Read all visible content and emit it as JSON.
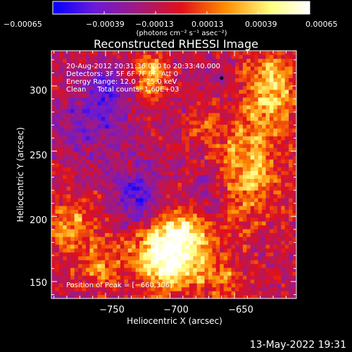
{
  "chart_data": {
    "type": "heatmap",
    "title": "Reconstructed RHESSI Image",
    "xlabel": "Heliocentric X (arcsec)",
    "ylabel": "Heliocentric Y (arcsec)",
    "xlim": [
      -792,
      -602
    ],
    "ylim": [
      137,
      327
    ],
    "x_ticks": [
      -750,
      -700,
      -650
    ],
    "x_tick_labels": [
      "−750",
      "−700",
      "−650"
    ],
    "y_ticks": [
      150,
      200,
      250,
      300
    ],
    "y_tick_labels": [
      "150",
      "200",
      "250",
      "300"
    ],
    "colorbar": {
      "min": -0.00065,
      "max": 0.00065,
      "tick_values": [
        -0.00065,
        -0.00039,
        -0.00013,
        0.00013,
        0.00039,
        0.00065
      ],
      "tick_labels": [
        "−0.00065",
        "−0.00039",
        "−0.00013",
        "0.00013",
        "0.00039",
        "0.00065"
      ],
      "units": "(photons cm⁻² s⁻¹ asec⁻²)",
      "colors": [
        "#0000ff",
        "#6a1ad8",
        "#a01a80",
        "#e0101a",
        "#ff8c00",
        "#ffff80",
        "#ffffff"
      ]
    },
    "annotations": {
      "time": "20‑Aug‑2012 20:31:36.000 to 20:33:40.000",
      "detectors": "Detectors: 3F 5F 6F 7F 8F, Att 0",
      "energy": "Energy Range: 12.0 − 25.0 keV",
      "clean": "Clean     Total counts: 1.60E+03",
      "peak": "Position of Peak = [−660,306]"
    },
    "peak": {
      "x": -660,
      "y": 306
    },
    "hot_regions": [
      {
        "x": -700,
        "y": 170,
        "sx": 22,
        "sy": 18,
        "amp": 0.00075
      },
      {
        "x": -692,
        "y": 188,
        "sx": 14,
        "sy": 12,
        "amp": 0.0003
      },
      {
        "x": -640,
        "y": 240,
        "sx": 18,
        "sy": 30,
        "amp": 0.00042
      },
      {
        "x": -620,
        "y": 300,
        "sx": 14,
        "sy": 20,
        "amp": 0.00045
      },
      {
        "x": -715,
        "y": 308,
        "sx": 10,
        "sy": 14,
        "amp": 0.00045
      },
      {
        "x": -775,
        "y": 190,
        "sx": 14,
        "sy": 18,
        "amp": 0.00035
      },
      {
        "x": -755,
        "y": 160,
        "sx": 10,
        "sy": 10,
        "amp": 0.00028
      },
      {
        "x": -655,
        "y": 150,
        "sx": 12,
        "sy": 10,
        "amp": 0.00025
      },
      {
        "x": -675,
        "y": 270,
        "sx": 8,
        "sy": 10,
        "amp": 0.00018
      }
    ],
    "cold_regions": [
      {
        "x": -760,
        "y": 275,
        "sx": 20,
        "sy": 20,
        "amp": -0.00025
      },
      {
        "x": -725,
        "y": 215,
        "sx": 12,
        "sy": 18,
        "amp": -0.00032
      },
      {
        "x": -670,
        "y": 220,
        "sx": 10,
        "sy": 14,
        "amp": -0.00022
      },
      {
        "x": -745,
        "y": 300,
        "sx": 12,
        "sy": 10,
        "amp": -0.0002
      }
    ]
  },
  "footer": {
    "timestamp": "13‑May‑2022 19:31"
  }
}
